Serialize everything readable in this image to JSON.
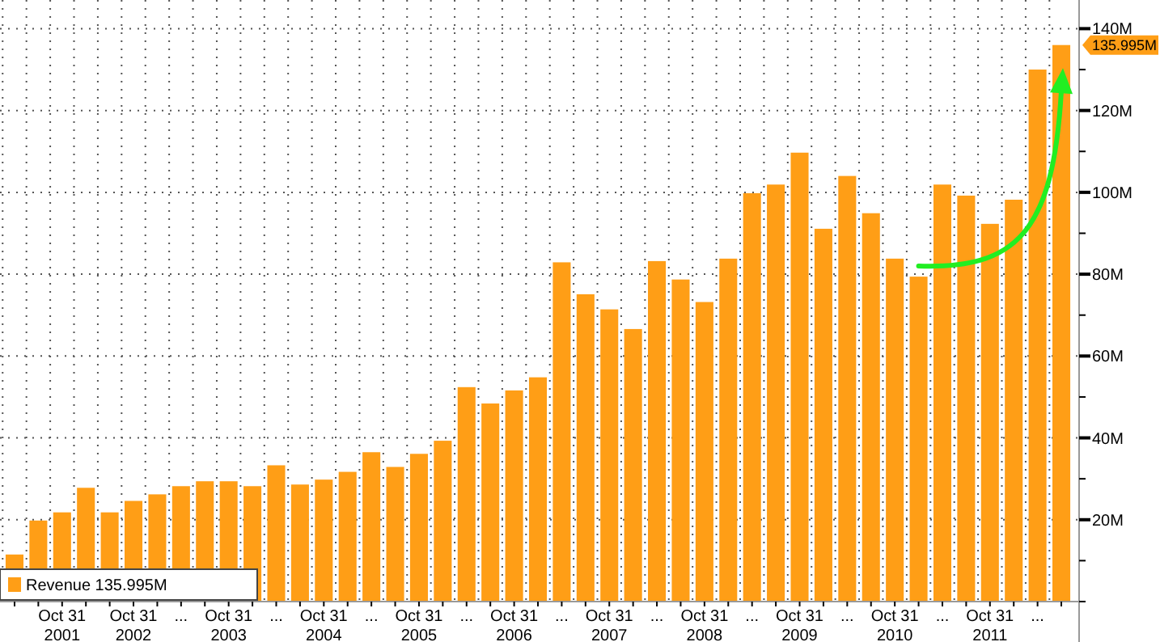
{
  "chart_data": {
    "type": "bar",
    "categories": [
      null,
      null,
      "Oct 31\n2001",
      null,
      null,
      "Oct 31\n2002",
      null,
      "...",
      null,
      "Oct 31\n2003",
      null,
      "...",
      null,
      "Oct 31\n2004",
      null,
      "...",
      null,
      "Oct 31\n2005",
      null,
      "...",
      null,
      "Oct 31\n2006",
      null,
      "...",
      null,
      "Oct 31\n2007",
      null,
      "...",
      null,
      "Oct 31\n2008",
      null,
      "...",
      null,
      "Oct 31\n2009",
      null,
      "...",
      null,
      "Oct 31\n2010",
      null,
      "...",
      null,
      "Oct 31\n2011",
      null,
      "...",
      null
    ],
    "series": [
      {
        "name": "Revenue",
        "color": "#ff9e16",
        "values": [
          11.5,
          19.8,
          21.8,
          27.8,
          21.8,
          24.6,
          26.2,
          28.2,
          29.4,
          29.4,
          28.2,
          33.3,
          28.6,
          29.8,
          31.7,
          36.5,
          32.9,
          36.1,
          39.3,
          52.4,
          48.4,
          51.6,
          54.8,
          82.9,
          75.1,
          71.4,
          66.6,
          83.2,
          78.7,
          73.2,
          83.8,
          99.8,
          101.9,
          109.7,
          91.1,
          104,
          94.9,
          83.8,
          79.4,
          101.9,
          99.2,
          92.3,
          98.2,
          130,
          135.995
        ]
      }
    ],
    "ylim": [
      0,
      147
    ],
    "yticks": [
      {
        "value": 0,
        "label": null
      },
      {
        "value": 10,
        "label": null
      },
      {
        "value": 20,
        "label": "20M"
      },
      {
        "value": 30,
        "label": null
      },
      {
        "value": 40,
        "label": "40M"
      },
      {
        "value": 50,
        "label": null
      },
      {
        "value": 60,
        "label": "60M"
      },
      {
        "value": 70,
        "label": null
      },
      {
        "value": 80,
        "label": "80M"
      },
      {
        "value": 90,
        "label": null
      },
      {
        "value": 100,
        "label": "100M"
      },
      {
        "value": 110,
        "label": null
      },
      {
        "value": 120,
        "label": "120M"
      },
      {
        "value": 130,
        "label": null
      },
      {
        "value": 140,
        "label": "140M"
      }
    ],
    "annotations": [
      "135.995M"
    ],
    "grid": true,
    "legend": "bottom left"
  }
}
